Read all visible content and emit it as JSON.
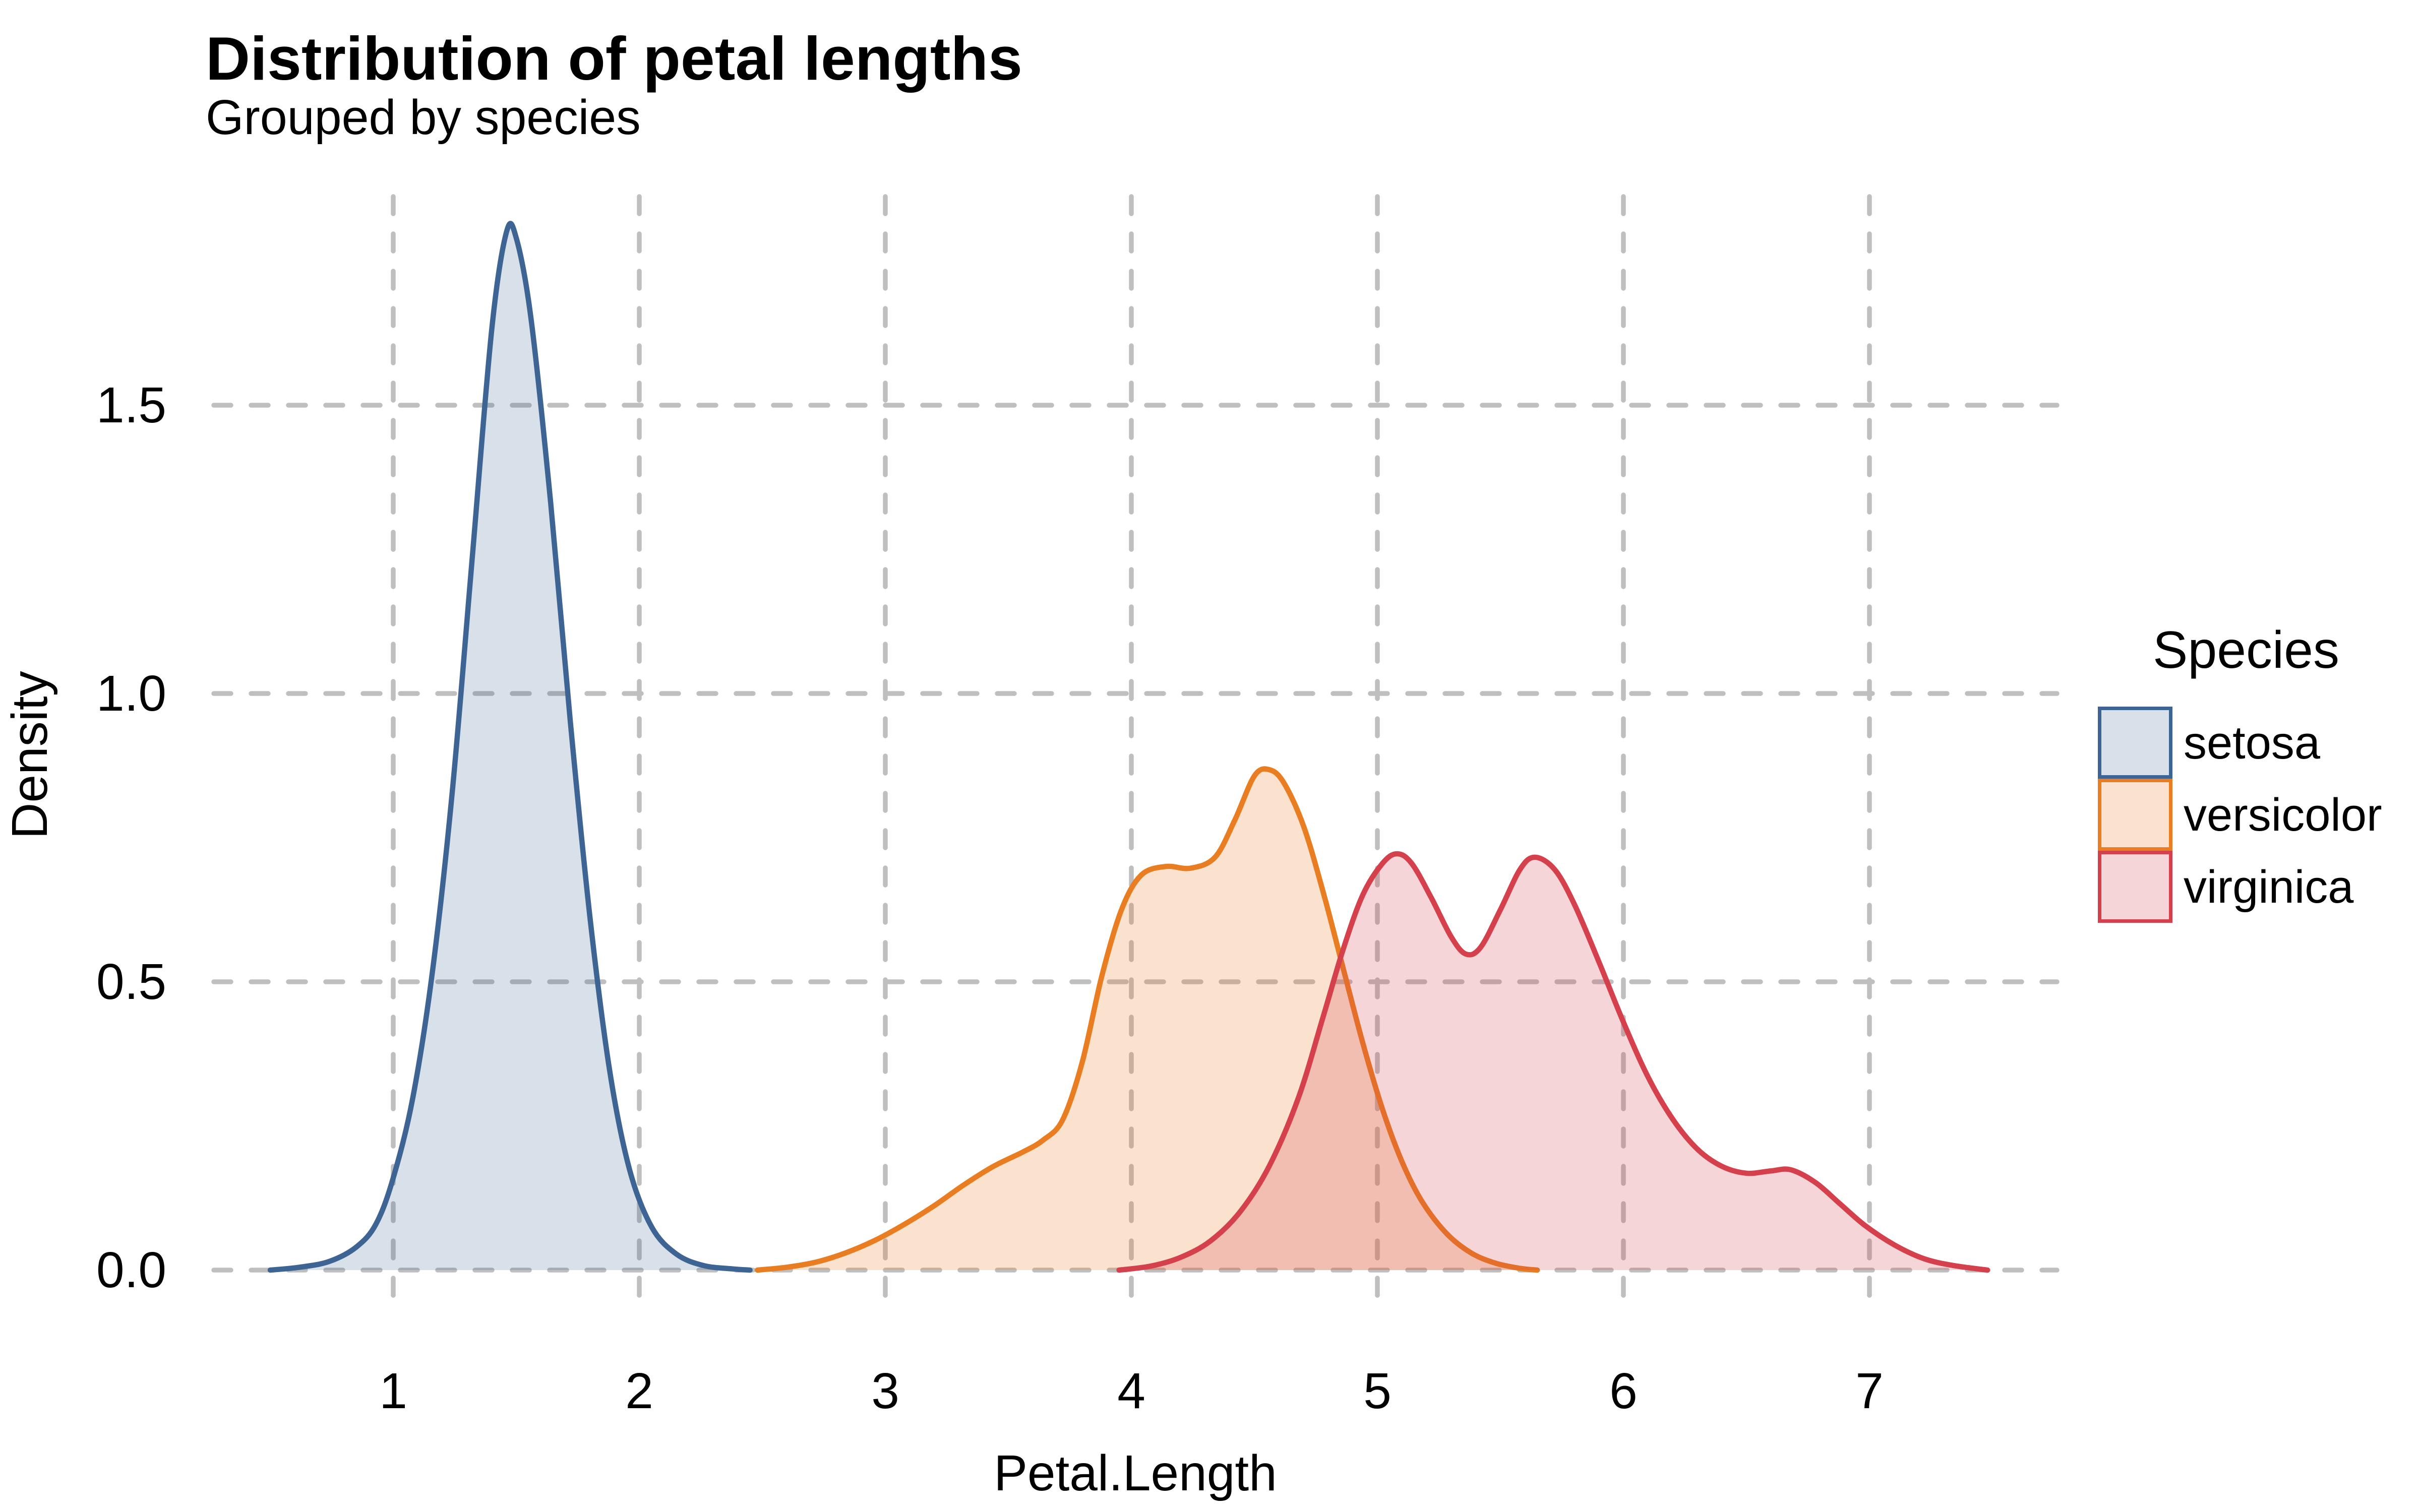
{
  "header": {
    "title": "Distribution of petal lengths",
    "subtitle": "Grouped by species"
  },
  "axes": {
    "x": {
      "label": "Petal.Length",
      "tick_labels": [
        "1",
        "2",
        "3",
        "4",
        "5",
        "6",
        "7"
      ]
    },
    "y": {
      "label": "Density",
      "tick_labels": [
        "0.0",
        "0.5",
        "1.0",
        "1.5"
      ]
    }
  },
  "legend": {
    "title": "Species",
    "items": [
      {
        "label": "setosa",
        "stroke": "#3D6493",
        "fill": "rgba(61,100,147,0.20)"
      },
      {
        "label": "versicolor",
        "stroke": "#E87D22",
        "fill": "rgba(232,125,33,0.22)"
      },
      {
        "label": "virginica",
        "stroke": "#D4414D",
        "fill": "rgba(212,65,77,0.22)"
      }
    ]
  },
  "colors": {
    "background": "#FFFFFF",
    "gridline": "#BFBFBF",
    "text": "#000000",
    "setosa_stroke": "#3D6493",
    "versicolor_stroke": "#E87D22",
    "virginica_stroke": "#D4414D",
    "setosa_fill_composited": "#D9E1EB",
    "versicolor_fill_composited": "#FAE2D3",
    "virginica_fill_composited": "#F5D8D9"
  },
  "chart_data": {
    "type": "area",
    "subtype": "kernel-density",
    "title": "Distribution of petal lengths",
    "subtitle": "Grouped by species",
    "xlabel": "Petal.Length",
    "ylabel": "Density",
    "xlim": [
      0.27,
      7.76
    ],
    "ylim": [
      -0.08,
      1.86
    ],
    "x_ticks": [
      1,
      2,
      3,
      4,
      5,
      6,
      7
    ],
    "y_ticks": [
      0,
      0.5,
      1.0,
      1.5
    ],
    "grid": "dashed-major-both",
    "legend_position": "right",
    "legend_title": "Species",
    "series": [
      {
        "name": "setosa",
        "stroke": "#3D6493",
        "fill": "rgba(61,100,147,0.20)",
        "peak": {
          "x": 1.46,
          "density": 1.8
        },
        "points": [
          [
            0.5,
            0.0
          ],
          [
            0.62,
            0.005
          ],
          [
            0.74,
            0.015
          ],
          [
            0.85,
            0.04
          ],
          [
            0.93,
            0.08
          ],
          [
            1.0,
            0.16
          ],
          [
            1.08,
            0.3
          ],
          [
            1.16,
            0.52
          ],
          [
            1.24,
            0.83
          ],
          [
            1.32,
            1.23
          ],
          [
            1.4,
            1.63
          ],
          [
            1.46,
            1.8
          ],
          [
            1.5,
            1.79
          ],
          [
            1.56,
            1.65
          ],
          [
            1.64,
            1.33
          ],
          [
            1.72,
            0.95
          ],
          [
            1.8,
            0.61
          ],
          [
            1.88,
            0.345
          ],
          [
            1.96,
            0.175
          ],
          [
            2.05,
            0.075
          ],
          [
            2.15,
            0.028
          ],
          [
            2.26,
            0.008
          ],
          [
            2.38,
            0.002
          ],
          [
            2.45,
            0.0
          ]
        ]
      },
      {
        "name": "versicolor",
        "stroke": "#E87D22",
        "fill": "rgba(232,125,33,0.22)",
        "peak": {
          "x": 4.55,
          "density": 0.87
        },
        "points": [
          [
            2.48,
            0.0
          ],
          [
            2.6,
            0.005
          ],
          [
            2.72,
            0.014
          ],
          [
            2.84,
            0.03
          ],
          [
            2.96,
            0.052
          ],
          [
            3.08,
            0.08
          ],
          [
            3.2,
            0.112
          ],
          [
            3.32,
            0.148
          ],
          [
            3.44,
            0.18
          ],
          [
            3.56,
            0.205
          ],
          [
            3.64,
            0.225
          ],
          [
            3.72,
            0.26
          ],
          [
            3.8,
            0.36
          ],
          [
            3.88,
            0.51
          ],
          [
            3.96,
            0.625
          ],
          [
            4.04,
            0.685
          ],
          [
            4.14,
            0.7
          ],
          [
            4.24,
            0.697
          ],
          [
            4.34,
            0.716
          ],
          [
            4.42,
            0.78
          ],
          [
            4.5,
            0.857
          ],
          [
            4.56,
            0.868
          ],
          [
            4.62,
            0.845
          ],
          [
            4.7,
            0.77
          ],
          [
            4.78,
            0.655
          ],
          [
            4.86,
            0.525
          ],
          [
            4.94,
            0.395
          ],
          [
            5.02,
            0.28
          ],
          [
            5.1,
            0.188
          ],
          [
            5.18,
            0.12
          ],
          [
            5.28,
            0.064
          ],
          [
            5.38,
            0.03
          ],
          [
            5.48,
            0.012
          ],
          [
            5.58,
            0.003
          ],
          [
            5.65,
            0.0
          ]
        ]
      },
      {
        "name": "virginica",
        "stroke": "#D4414D",
        "fill": "rgba(212,65,77,0.22)",
        "peak": {
          "x": 5.08,
          "density": 0.72
        },
        "points": [
          [
            3.95,
            0.0
          ],
          [
            4.08,
            0.007
          ],
          [
            4.2,
            0.022
          ],
          [
            4.32,
            0.05
          ],
          [
            4.44,
            0.1
          ],
          [
            4.56,
            0.18
          ],
          [
            4.68,
            0.3
          ],
          [
            4.78,
            0.44
          ],
          [
            4.86,
            0.555
          ],
          [
            4.94,
            0.65
          ],
          [
            5.02,
            0.705
          ],
          [
            5.08,
            0.722
          ],
          [
            5.14,
            0.705
          ],
          [
            5.22,
            0.645
          ],
          [
            5.3,
            0.578
          ],
          [
            5.36,
            0.548
          ],
          [
            5.42,
            0.56
          ],
          [
            5.5,
            0.625
          ],
          [
            5.58,
            0.695
          ],
          [
            5.64,
            0.716
          ],
          [
            5.72,
            0.695
          ],
          [
            5.8,
            0.635
          ],
          [
            5.9,
            0.535
          ],
          [
            6.0,
            0.43
          ],
          [
            6.1,
            0.335
          ],
          [
            6.2,
            0.262
          ],
          [
            6.3,
            0.21
          ],
          [
            6.4,
            0.18
          ],
          [
            6.5,
            0.168
          ],
          [
            6.6,
            0.172
          ],
          [
            6.68,
            0.174
          ],
          [
            6.78,
            0.152
          ],
          [
            6.88,
            0.115
          ],
          [
            6.98,
            0.078
          ],
          [
            7.1,
            0.044
          ],
          [
            7.22,
            0.02
          ],
          [
            7.34,
            0.008
          ],
          [
            7.48,
            0.0
          ]
        ]
      }
    ]
  }
}
